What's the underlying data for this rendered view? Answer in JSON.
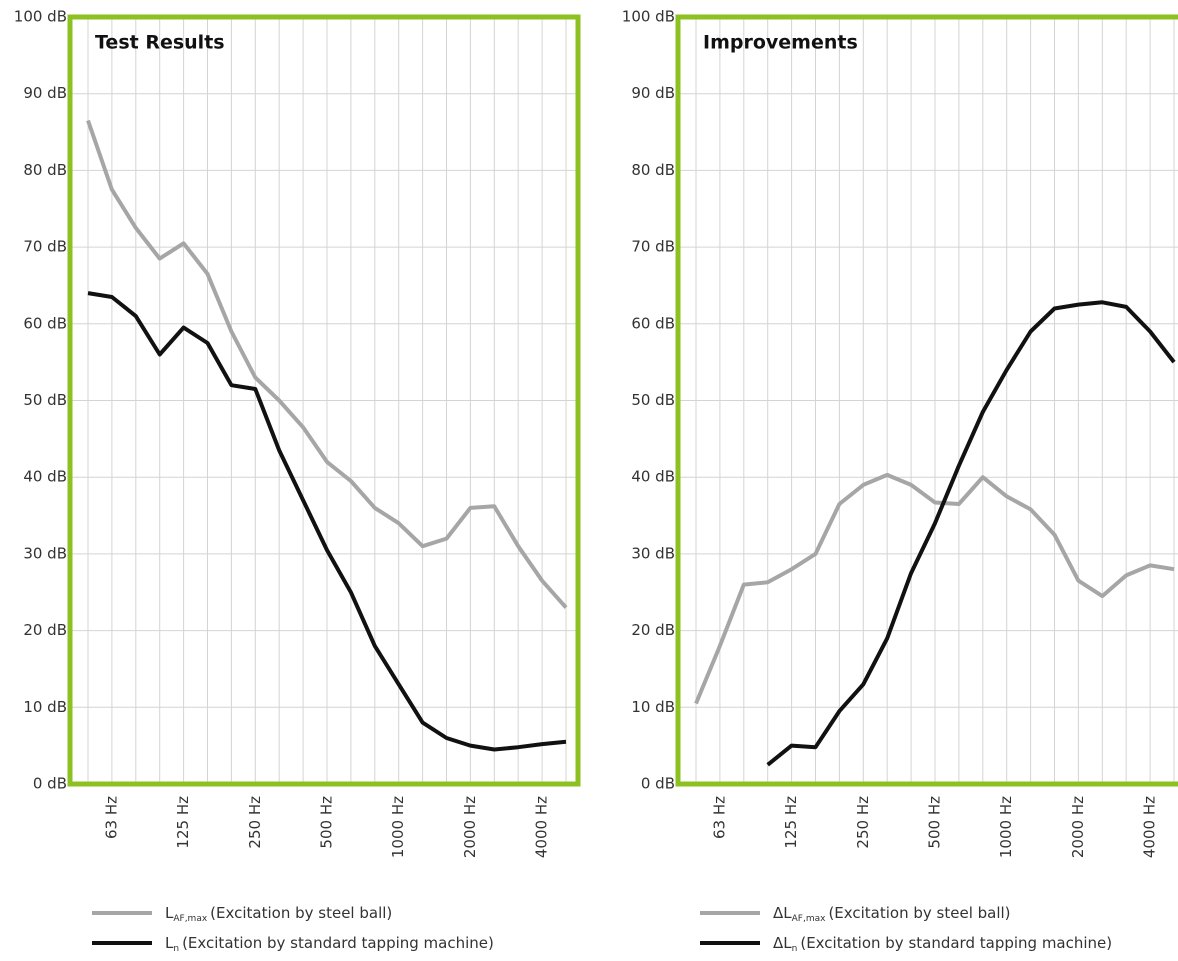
{
  "chart_data": [
    {
      "type": "line",
      "title": "Test Results",
      "categories": [
        null,
        "63 Hz",
        null,
        null,
        "125 Hz",
        null,
        null,
        "250 Hz",
        null,
        null,
        "500 Hz",
        null,
        null,
        "1000 Hz",
        null,
        null,
        "2000 Hz",
        null,
        null,
        "4000 Hz",
        null
      ],
      "ylim": [
        0,
        100
      ],
      "yticks": [
        {
          "value": 0,
          "label": "0 dB"
        },
        {
          "value": 10,
          "label": "10 dB"
        },
        {
          "value": 20,
          "label": "20 dB"
        },
        {
          "value": 30,
          "label": "30 dB"
        },
        {
          "value": 40,
          "label": "40 dB"
        },
        {
          "value": 50,
          "label": "50 dB"
        },
        {
          "value": 60,
          "label": "60 dB"
        },
        {
          "value": 70,
          "label": "70 dB"
        },
        {
          "value": 80,
          "label": "80 dB"
        },
        {
          "value": 90,
          "label": "90 dB"
        },
        {
          "value": 100,
          "label": "100 dB"
        }
      ],
      "grid": true,
      "frame_color": "#8dc021",
      "series": [
        {
          "name": "L",
          "name_sub": "AF,max",
          "name_rest": "(Excitation by steel ball)",
          "color": "#a6a6a6",
          "values": [
            86.5,
            77.5,
            72.5,
            68.5,
            70.5,
            66.5,
            59,
            53,
            50,
            46.5,
            42,
            39.5,
            36,
            34,
            31,
            32,
            36,
            36.2,
            31,
            26.5,
            23
          ]
        },
        {
          "name": "L",
          "name_sub": "n",
          "name_rest": "(Excitation by standard tapping machine)",
          "color": "#111111",
          "values": [
            64,
            63.5,
            61,
            56,
            59.5,
            57.5,
            52,
            51.5,
            43.5,
            37,
            30.5,
            25,
            18,
            13,
            8,
            6,
            5,
            4.5,
            4.8,
            5.2,
            5.5
          ]
        }
      ]
    },
    {
      "type": "line",
      "title": "Improvements",
      "categories": [
        null,
        "63 Hz",
        null,
        null,
        "125 Hz",
        null,
        null,
        "250 Hz",
        null,
        null,
        "500 Hz",
        null,
        null,
        "1000 Hz",
        null,
        null,
        "2000 Hz",
        null,
        null,
        "4000 Hz",
        null
      ],
      "ylim": [
        0,
        100
      ],
      "yticks": [
        {
          "value": 0,
          "label": "0 dB"
        },
        {
          "value": 10,
          "label": "10 dB"
        },
        {
          "value": 20,
          "label": "20 dB"
        },
        {
          "value": 30,
          "label": "30 dB"
        },
        {
          "value": 40,
          "label": "40 dB"
        },
        {
          "value": 50,
          "label": "50 dB"
        },
        {
          "value": 60,
          "label": "60 dB"
        },
        {
          "value": 70,
          "label": "70 dB"
        },
        {
          "value": 80,
          "label": "80 dB"
        },
        {
          "value": 90,
          "label": "90 dB"
        },
        {
          "value": 100,
          "label": "100 dB"
        }
      ],
      "grid": true,
      "frame_color": "#8dc021",
      "series": [
        {
          "name": "ΔL",
          "name_sub": "AF,max",
          "name_rest": "(Excitation by steel ball)",
          "color": "#a6a6a6",
          "values": [
            10.5,
            18,
            26,
            26.3,
            28,
            30,
            36.5,
            39,
            40.3,
            39,
            36.7,
            36.5,
            40,
            37.5,
            35.8,
            32.5,
            26.5,
            24.5,
            27.2,
            28.5,
            28
          ]
        },
        {
          "name": "ΔL",
          "name_sub": "n",
          "name_rest": "(Excitation by standard tapping machine)",
          "color": "#111111",
          "values": [
            null,
            null,
            null,
            2.5,
            5,
            4.8,
            9.5,
            13,
            19,
            27.5,
            34,
            41.5,
            48.5,
            54,
            59,
            62,
            62.5,
            62.8,
            62.2,
            59,
            55
          ]
        }
      ]
    }
  ]
}
